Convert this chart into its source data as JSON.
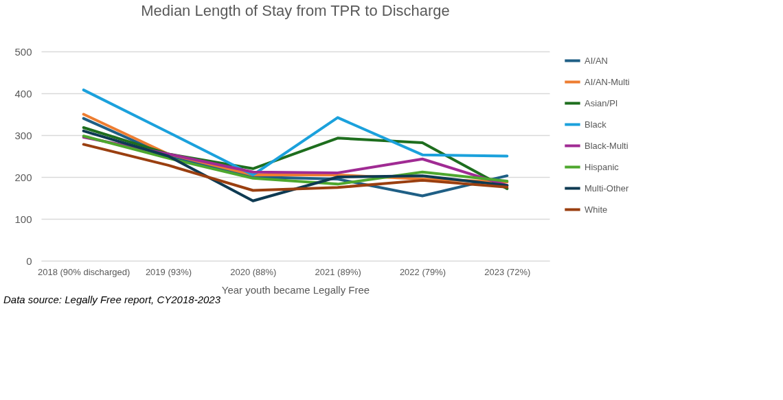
{
  "chart_data": {
    "type": "line",
    "title": "Median Length of Stay from TPR to Discharge",
    "xlabel": "Year youth became Legally Free",
    "categories": [
      "2018 (90% discharged)",
      "2019 (93%)",
      "2020 (88%)",
      "2021 (89%)",
      "2022 (79%)",
      "2023 (72%)"
    ],
    "series": [
      {
        "name": "AI/AN",
        "color": "#1f5f85",
        "values": [
          340,
          250,
          200,
          195,
          155,
          203
        ]
      },
      {
        "name": "AI/AN-Multi",
        "color": "#ed7d31",
        "values": [
          350,
          255,
          205,
          205,
          195,
          188
        ]
      },
      {
        "name": "Asian/PI",
        "color": "#1e6e1e",
        "values": [
          318,
          255,
          220,
          293,
          282,
          172
        ]
      },
      {
        "name": "Black",
        "color": "#1ba1dc",
        "values": [
          408,
          307,
          205,
          342,
          253,
          250
        ]
      },
      {
        "name": "Black-Multi",
        "color": "#a02b93",
        "values": [
          295,
          255,
          212,
          210,
          243,
          180
        ]
      },
      {
        "name": "Hispanic",
        "color": "#4ea72e",
        "values": [
          298,
          245,
          197,
          183,
          212,
          190
        ]
      },
      {
        "name": "Multi-Other",
        "color": "#0e3a52",
        "values": [
          310,
          250,
          143,
          200,
          203,
          180
        ]
      },
      {
        "name": "White",
        "color": "#9a3f10",
        "values": [
          278,
          228,
          168,
          175,
          192,
          176
        ]
      }
    ],
    "ylim": [
      0,
      500
    ],
    "yticks": [
      0,
      100,
      200,
      300,
      400,
      500
    ],
    "grid": "y",
    "legend": "right",
    "marker": "none",
    "line_style": "solid",
    "annotations": [
      "Data source: Legally Free report, CY2018-2023"
    ]
  }
}
